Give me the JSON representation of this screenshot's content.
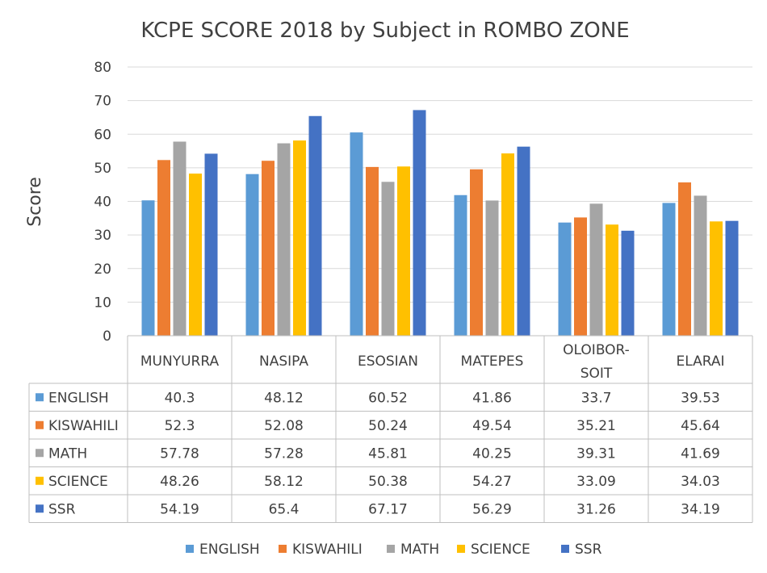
{
  "chart_data": {
    "type": "bar",
    "title": "KCPE SCORE 2018 by Subject in ROMBO ZONE",
    "ylabel": "Score",
    "xlabel": "",
    "ylim": [
      0,
      80
    ],
    "yticks": [
      0,
      10,
      20,
      30,
      40,
      50,
      60,
      70,
      80
    ],
    "grid": true,
    "legend": "bottom",
    "data_table": true,
    "categories": [
      [
        "MUNYURRA"
      ],
      [
        "NASIPA"
      ],
      [
        "ESOSIAN"
      ],
      [
        "MATEPES"
      ],
      [
        "OLOIBOR-",
        "SOIT"
      ],
      [
        "ELARAI"
      ]
    ],
    "series": [
      {
        "name": "ENGLISH",
        "color": "#5b9bd5",
        "values": [
          40.3,
          48.12,
          60.52,
          41.86,
          33.7,
          39.53
        ]
      },
      {
        "name": "KISWAHILI",
        "color": "#ed7d31",
        "values": [
          52.3,
          52.08,
          50.24,
          49.54,
          35.21,
          45.64
        ]
      },
      {
        "name": "MATH",
        "color": "#a5a5a5",
        "values": [
          57.78,
          57.28,
          45.81,
          40.25,
          39.31,
          41.69
        ]
      },
      {
        "name": "SCIENCE",
        "color": "#ffc000",
        "values": [
          48.26,
          58.12,
          50.38,
          54.27,
          33.09,
          34.03
        ]
      },
      {
        "name": "SSR",
        "color": "#4472c4",
        "values": [
          54.19,
          65.4,
          67.17,
          56.29,
          31.26,
          34.19
        ]
      }
    ]
  }
}
